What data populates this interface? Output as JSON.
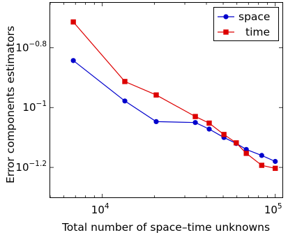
{
  "chart_data": {
    "type": "line",
    "x_scale": "log",
    "y_scale": "log",
    "xlabel": "Total number of space–time unknowns",
    "ylabel": "Error components estimators",
    "xlim": [
      5000,
      110000
    ],
    "ylim_log10": [
      -1.3,
      -0.65
    ],
    "x_ticks": [
      {
        "base": "10",
        "exp": "4",
        "value": 10000
      },
      {
        "base": "10",
        "exp": "5",
        "value": 100000
      }
    ],
    "y_ticks": [
      {
        "base": "10",
        "exp": "−0.8",
        "log10": -0.8
      },
      {
        "base": "10",
        "exp": "−1",
        "log10": -1.0
      },
      {
        "base": "10",
        "exp": "−1.2",
        "log10": -1.2
      }
    ],
    "grid": false,
    "legend_position": "top-right",
    "series": [
      {
        "name": "space",
        "color": "#0000cc",
        "marker": "circle",
        "x": [
          6800,
          13500,
          20500,
          34500,
          41500,
          50500,
          59500,
          68000,
          83500,
          100000
        ],
        "log10_y": [
          -0.843,
          -0.978,
          -1.047,
          -1.05,
          -1.072,
          -1.1,
          -1.12,
          -1.14,
          -1.16,
          -1.18
        ]
      },
      {
        "name": "time",
        "color": "#dd0000",
        "marker": "square",
        "x": [
          6800,
          13500,
          20500,
          34500,
          41500,
          50500,
          59500,
          68000,
          83500,
          100000
        ],
        "log10_y": [
          -0.714,
          -0.913,
          -0.958,
          -1.03,
          -1.052,
          -1.09,
          -1.118,
          -1.153,
          -1.193,
          -1.203
        ]
      }
    ]
  }
}
